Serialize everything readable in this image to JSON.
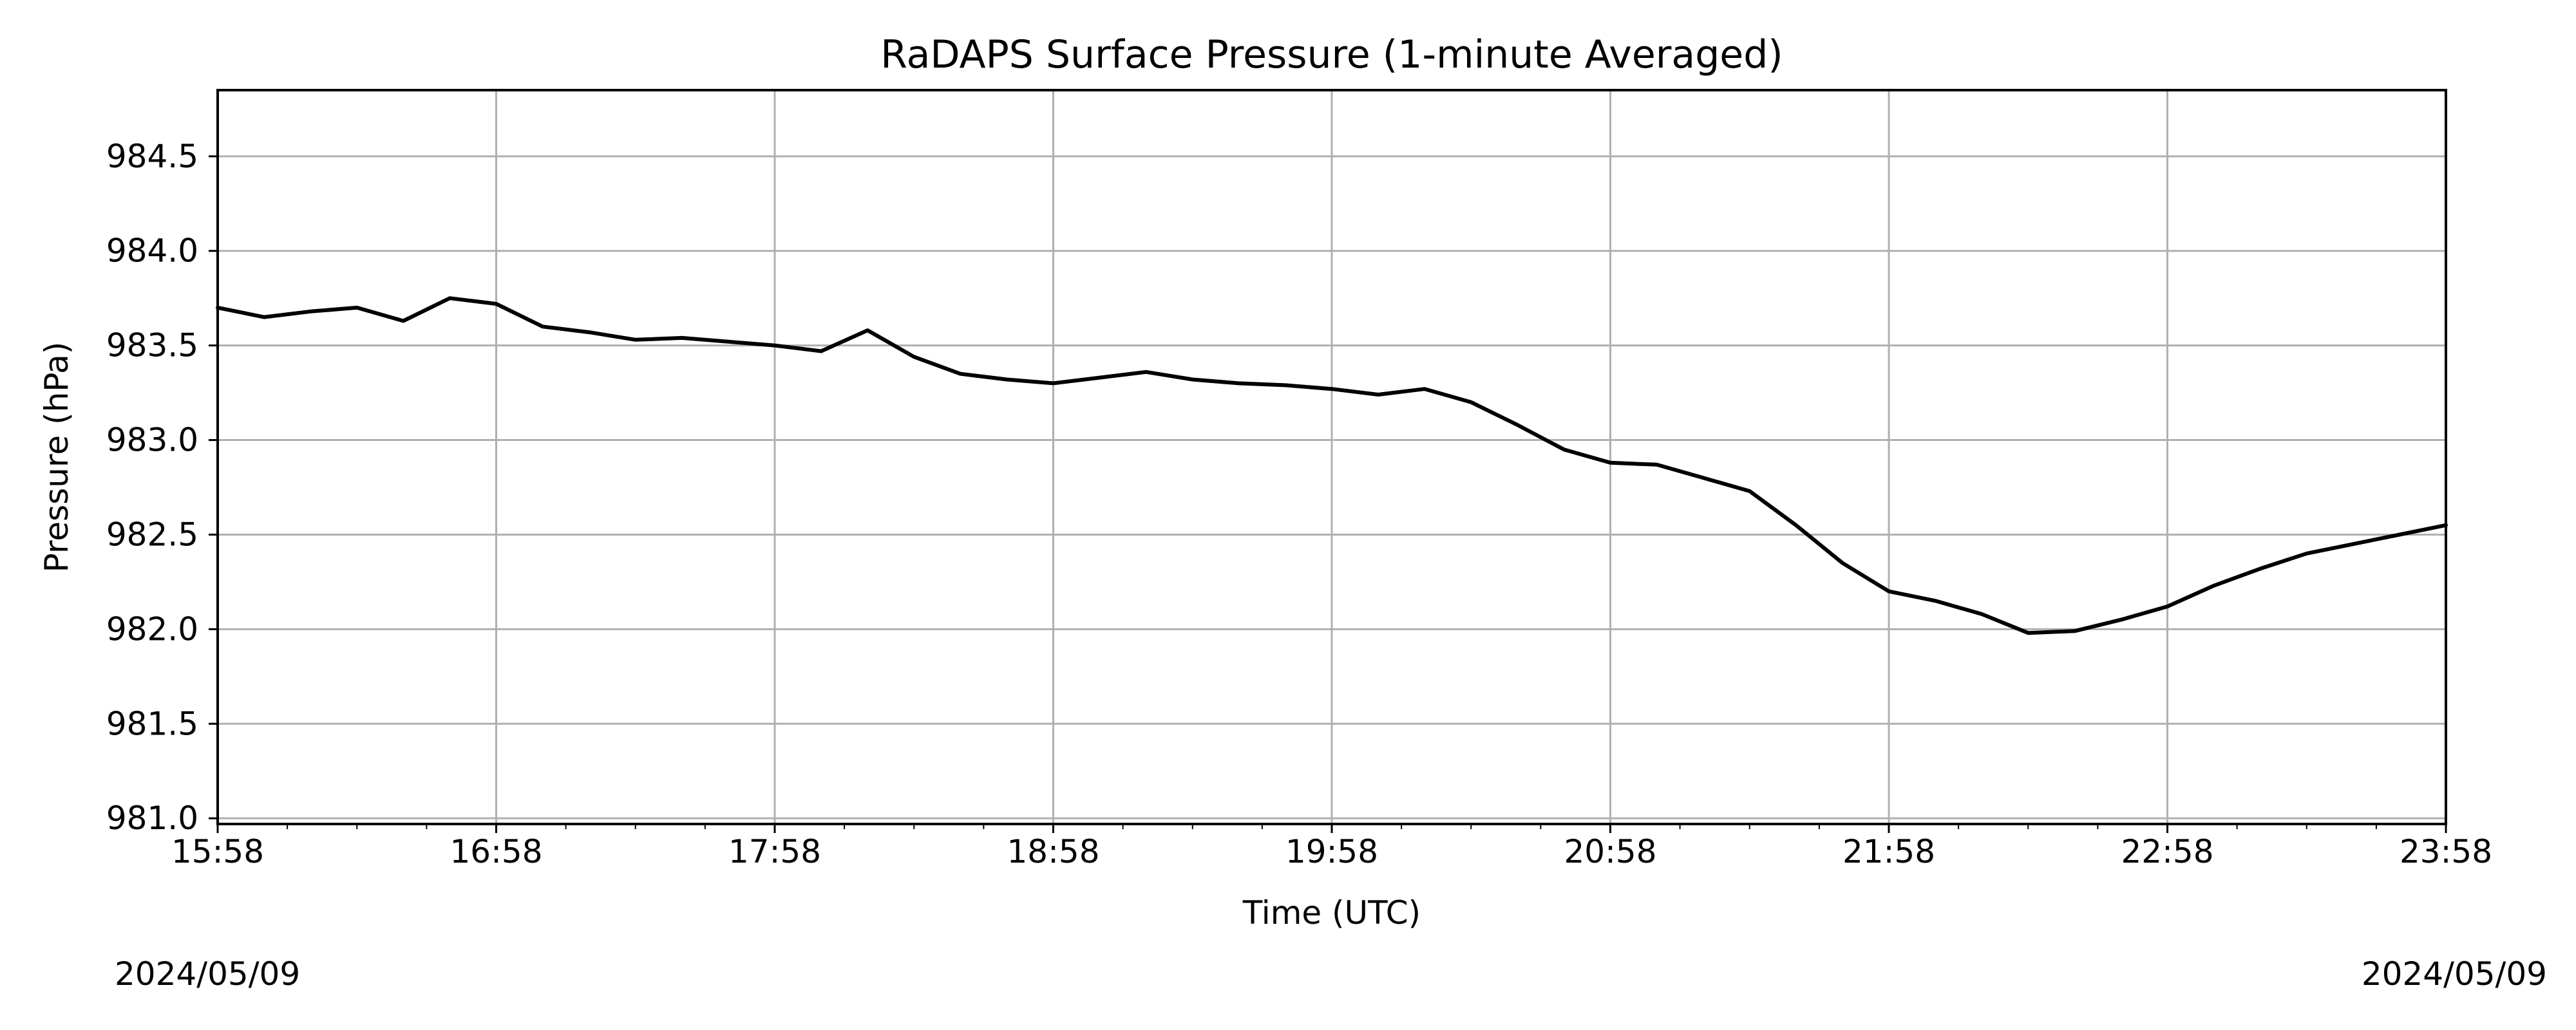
{
  "chart_data": {
    "type": "line",
    "title": "RaDAPS Surface Pressure (1-minute Averaged)",
    "xlabel": "Time (UTC)",
    "ylabel": "Pressure (hPa)",
    "x_ticks": [
      "15:58",
      "16:58",
      "17:58",
      "18:58",
      "19:58",
      "20:58",
      "21:58",
      "22:58",
      "23:58"
    ],
    "y_ticks": [
      "981.0",
      "981.5",
      "982.0",
      "982.5",
      "983.0",
      "983.5",
      "984.0",
      "984.5"
    ],
    "xlim": [
      "15:58",
      "23:58"
    ],
    "ylim": [
      980.97,
      984.85
    ],
    "grid": true,
    "line_color": "#000000",
    "date_left": "2024/05/09",
    "date_right": "2024/05/09",
    "series": [
      {
        "x": [
          "15:58",
          "16:08",
          "16:18",
          "16:28",
          "16:38",
          "16:48",
          "16:58",
          "17:08",
          "17:18",
          "17:28",
          "17:38",
          "17:48",
          "17:58",
          "18:08",
          "18:18",
          "18:28",
          "18:38",
          "18:48",
          "18:58",
          "19:08",
          "19:18",
          "19:28",
          "19:38",
          "19:48",
          "19:58",
          "20:08",
          "20:18",
          "20:28",
          "20:38",
          "20:48",
          "20:58",
          "21:08",
          "21:18",
          "21:28",
          "21:38",
          "21:48",
          "21:58",
          "22:08",
          "22:18",
          "22:28",
          "22:38",
          "22:48",
          "22:58",
          "23:08",
          "23:18",
          "23:28",
          "23:38",
          "23:48",
          "23:58"
        ],
        "values": [
          983.7,
          983.65,
          983.68,
          983.7,
          983.63,
          983.75,
          983.72,
          983.6,
          983.57,
          983.53,
          983.54,
          983.52,
          983.5,
          983.47,
          983.58,
          983.44,
          983.35,
          983.32,
          983.3,
          983.33,
          983.36,
          983.32,
          983.3,
          983.29,
          983.27,
          983.24,
          983.27,
          983.2,
          983.08,
          982.95,
          982.88,
          982.87,
          982.8,
          982.73,
          982.55,
          982.35,
          982.2,
          982.15,
          982.08,
          981.98,
          981.99,
          982.05,
          982.12,
          982.23,
          982.32,
          982.4,
          982.45,
          982.5,
          982.55
        ]
      }
    ]
  }
}
